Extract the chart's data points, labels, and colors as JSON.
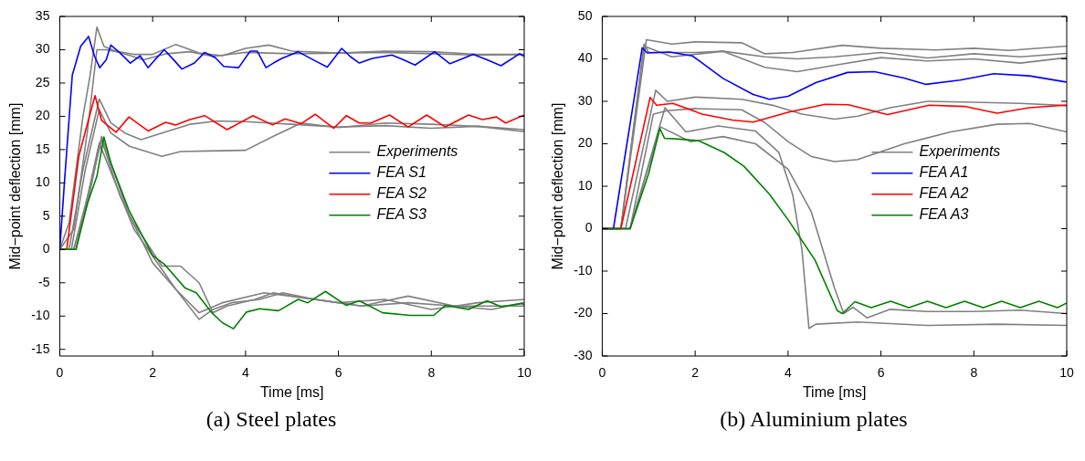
{
  "chart_data": [
    {
      "type": "line",
      "xlabel": "Time [ms]",
      "ylabel": "Mid−point deflection [mm]",
      "annotations": [
        "(a) Steel plates"
      ],
      "xlim": [
        0,
        10
      ],
      "xticks": [
        0,
        2,
        4,
        6,
        8,
        10
      ],
      "ylim": [
        -16,
        35
      ],
      "yticks": [
        -15,
        -10,
        -5,
        0,
        5,
        10,
        15,
        20,
        25,
        30,
        35
      ],
      "legend": "right",
      "series": [
        {
          "name": "Experiments",
          "color": "#808080",
          "x": [
            0,
            0.2,
            0.5,
            0.65,
            0.8,
            0.95,
            1.2,
            1.6,
            2.0,
            2.5,
            3.0,
            3.5,
            4.0,
            4.5,
            5.0,
            6.0,
            7.0,
            8.0,
            9.0,
            10
          ],
          "values": [
            0,
            4,
            20,
            26,
            33.4,
            30.5,
            29.8,
            29.3,
            29.3,
            30.8,
            29.5,
            29.1,
            30.2,
            30.7,
            29.8,
            29.5,
            29.8,
            29.7,
            29.3,
            29.3
          ]
        },
        {
          "color": "#808080",
          "x": [
            0,
            0.3,
            0.6,
            0.8,
            1.0,
            1.3,
            1.8,
            2.3,
            2.8,
            3.3,
            4,
            5,
            6,
            7,
            8,
            9,
            10
          ],
          "values": [
            0,
            3,
            18,
            30,
            30,
            29.6,
            28.5,
            29.4,
            29.7,
            29,
            29.6,
            29.4,
            29.5,
            29.6,
            29.4,
            29.2,
            29.3
          ]
        },
        {
          "color": "#808080",
          "x": [
            0,
            0.2,
            0.5,
            0.85,
            1.1,
            1.4,
            1.75,
            2.2,
            2.8,
            3.4,
            4.0,
            5.0,
            6.0,
            7.0,
            8.0,
            9.0,
            10
          ],
          "values": [
            0,
            0,
            12,
            22.6,
            19,
            17.5,
            16.5,
            17.5,
            18.8,
            19.3,
            19.2,
            18.8,
            18.4,
            18.6,
            18.2,
            18.5,
            18
          ]
        },
        {
          "color": "#808080",
          "x": [
            0,
            0.25,
            0.55,
            0.85,
            1.1,
            1.5,
            2.2,
            2.6,
            3.2,
            4.0,
            4.6,
            5.2,
            6,
            7,
            8,
            9,
            10
          ],
          "values": [
            0,
            0,
            12,
            21,
            17.5,
            15.5,
            14,
            14.7,
            14.8,
            14.9,
            17,
            19,
            18.3,
            19,
            18.8,
            18.5,
            17.7
          ]
        },
        {
          "color": "#808080",
          "x": [
            0,
            0.3,
            0.6,
            0.9,
            1.3,
            2.0,
            2.5,
            3.0,
            3.3,
            3.7,
            4.3,
            4.8,
            5.5,
            6.5,
            7.5,
            8.5,
            9.3,
            10
          ],
          "values": [
            0,
            0,
            8,
            16.5,
            8,
            -2,
            -6,
            -10.5,
            -9,
            -8,
            -7.5,
            -6.5,
            -7.5,
            -8.5,
            -8,
            -8.5,
            -9,
            -8
          ]
        },
        {
          "color": "#808080",
          "x": [
            0,
            0.3,
            0.6,
            0.9,
            1.5,
            2.2,
            2.6,
            3.0,
            3.3,
            3.6,
            4.2,
            4.6,
            5,
            6,
            7,
            8,
            9,
            10
          ],
          "values": [
            0,
            0,
            7,
            17,
            5,
            -2.5,
            -2.5,
            -5,
            -9.5,
            -8.5,
            -7.5,
            -6.5,
            -7,
            -8,
            -7.5,
            -9,
            -8,
            -7.5
          ]
        },
        {
          "color": "#808080",
          "x": [
            0,
            0.35,
            0.85,
            1.6,
            2.5,
            3.0,
            3.5,
            4.4,
            5.5,
            6.5,
            7.5,
            8.5,
            10
          ],
          "values": [
            0,
            0,
            16,
            3,
            -6,
            -9.5,
            -8,
            -6.5,
            -7.5,
            -8.5,
            -7,
            -8.5,
            -8.5
          ]
        },
        {
          "name": "FEA S1",
          "color": "#0000ff",
          "x": [
            0,
            0.1,
            0.27,
            0.45,
            0.62,
            0.75,
            0.86,
            1.0,
            1.1,
            1.3,
            1.52,
            1.73,
            1.9,
            2.05,
            2.25,
            2.45,
            2.63,
            2.9,
            3.12,
            3.35,
            3.53,
            3.85,
            4.1,
            4.25,
            4.44,
            4.6,
            4.78,
            5.13,
            5.48,
            5.76,
            6.07,
            6.25,
            6.45,
            6.73,
            7.15,
            7.4,
            7.65,
            8.07,
            8.4,
            8.9,
            9.2,
            9.5,
            9.9,
            10
          ],
          "values": [
            0,
            10,
            26.2,
            30.5,
            32,
            29,
            27.3,
            28.5,
            30.7,
            29.5,
            28,
            29.1,
            27.3,
            28.5,
            30,
            28.5,
            27.1,
            28,
            29.6,
            28.8,
            27.5,
            27.3,
            29.8,
            29.8,
            27.3,
            28,
            28.7,
            29.7,
            28.4,
            27.4,
            30.2,
            29,
            28,
            28.7,
            29.2,
            28.5,
            27.7,
            29.7,
            27.9,
            29.3,
            28.5,
            27.6,
            29.4,
            29
          ]
        },
        {
          "name": "FEA S2",
          "color": "#ff0000",
          "x": [
            0,
            0.15,
            0.41,
            0.6,
            0.76,
            0.9,
            1.21,
            1.49,
            1.9,
            2.28,
            2.49,
            2.8,
            3.12,
            3.6,
            4.16,
            4.58,
            4.85,
            5.2,
            5.5,
            5.9,
            6.17,
            6.45,
            6.7,
            7.1,
            7.5,
            7.9,
            8.3,
            8.8,
            9.1,
            9.4,
            9.6,
            10
          ],
          "values": [
            0,
            0,
            14,
            19,
            23.1,
            19.4,
            17.6,
            19.9,
            17.8,
            19.1,
            18.7,
            19.5,
            20.1,
            18,
            20.1,
            18.7,
            19.6,
            18.9,
            20.3,
            18.2,
            20.1,
            19,
            19,
            20.2,
            18.4,
            20.2,
            18.4,
            20.2,
            19.5,
            19.9,
            19,
            20.2
          ]
        },
        {
          "name": "FEA S3",
          "color": "#008000",
          "x": [
            0,
            0.35,
            0.6,
            0.8,
            0.95,
            1.1,
            1.49,
            2.0,
            2.25,
            2.7,
            2.94,
            3.26,
            3.5,
            3.74,
            4.02,
            4.3,
            4.71,
            5.13,
            5.34,
            5.72,
            6.17,
            6.45,
            6.95,
            7.55,
            8.05,
            8.3,
            8.8,
            9.2,
            9.5,
            9.95,
            10
          ],
          "values": [
            0,
            0,
            7,
            11,
            16.9,
            13,
            5.9,
            -0.9,
            -2.2,
            -5.8,
            -6.5,
            -9.4,
            -11,
            -11.9,
            -9.4,
            -8.9,
            -9.2,
            -7.5,
            -8,
            -6.3,
            -8.4,
            -7.7,
            -9.5,
            -9.9,
            -9.9,
            -8.4,
            -9,
            -7.7,
            -8.6,
            -8.1,
            -8.3
          ]
        }
      ]
    },
    {
      "type": "line",
      "xlabel": "Time [ms]",
      "ylabel": "Mid−point deflection [mm]",
      "annotations": [
        "(b) Aluminium plates"
      ],
      "xlim": [
        0,
        10
      ],
      "xticks": [
        0,
        2,
        4,
        6,
        8,
        10
      ],
      "ylim": [
        -30,
        50
      ],
      "yticks": [
        -30,
        -20,
        -10,
        0,
        10,
        20,
        30,
        40,
        50
      ],
      "legend": "right",
      "series": [
        {
          "name": "Experiments",
          "color": "#808080",
          "x": [
            0,
            0.4,
            0.95,
            1.5,
            2.0,
            3.0,
            3.5,
            4.1,
            5.17,
            6,
            7.18,
            8,
            8.76,
            10
          ],
          "values": [
            0,
            0,
            44.5,
            43.5,
            44,
            43.8,
            41.2,
            41.5,
            43.2,
            42.5,
            42.1,
            42.5,
            42,
            43
          ]
        },
        {
          "color": "#808080",
          "x": [
            0,
            0.4,
            0.9,
            1.0,
            2.0,
            2.6,
            3.5,
            4.2,
            5,
            6,
            7,
            8,
            9,
            10
          ],
          "values": [
            0,
            0,
            43.5,
            41.5,
            41.5,
            41.8,
            40.5,
            40,
            40.5,
            41.5,
            40.2,
            41.2,
            40.5,
            41.3
          ]
        },
        {
          "color": "#808080",
          "x": [
            0,
            0.4,
            0.9,
            1.5,
            2.6,
            3.5,
            4.2,
            5,
            6,
            7,
            8,
            9,
            10
          ],
          "values": [
            0,
            0,
            43,
            40.5,
            41.8,
            38,
            37,
            38.5,
            40.3,
            39.5,
            40,
            39,
            40.3
          ]
        },
        {
          "color": "#808080",
          "x": [
            0,
            0.5,
            1.15,
            1.4,
            2.0,
            3.0,
            3.7,
            4.3,
            5.0,
            5.5,
            6.2,
            7,
            8,
            9,
            10
          ],
          "values": [
            0,
            0,
            32.6,
            30,
            31,
            30.5,
            29,
            27,
            25.8,
            26.5,
            28.5,
            30,
            29.8,
            29.5,
            29
          ]
        },
        {
          "color": "#808080",
          "x": [
            0,
            0.6,
            1.1,
            1.4,
            2.0,
            3.0,
            3.5,
            4.0,
            4.5,
            5.0,
            5.5,
            6.5,
            7.5,
            8.5,
            9.2,
            10
          ],
          "values": [
            0,
            0,
            27,
            27.8,
            28.3,
            28,
            25,
            20.5,
            17,
            15.8,
            16.3,
            20,
            22.8,
            24.6,
            24.8,
            22.8
          ]
        },
        {
          "color": "#808080",
          "x": [
            0,
            0.6,
            1.35,
            1.8,
            2.5,
            3.3,
            3.8,
            4.1,
            4.3,
            4.45,
            4.6,
            5.5,
            7,
            8.5,
            10
          ],
          "values": [
            0,
            0,
            28.5,
            22.8,
            24.2,
            23,
            18,
            8,
            -5,
            -23.5,
            -22.5,
            -22,
            -22.8,
            -22.5,
            -22.8
          ]
        },
        {
          "color": "#808080",
          "x": [
            0,
            0.6,
            1.25,
            1.9,
            2.6,
            3.3,
            4.0,
            4.5,
            5.0,
            5.2,
            5.4,
            5.7,
            6.2,
            7,
            8,
            9,
            10
          ],
          "values": [
            0,
            0,
            24,
            20.5,
            21.7,
            20,
            14,
            4,
            -14,
            -20,
            -18.5,
            -21,
            -19,
            -19.5,
            -19.5,
            -19.2,
            -20
          ]
        },
        {
          "name": "FEA A1",
          "color": "#0000ff",
          "x": [
            0,
            0.24,
            0.86,
            0.97,
            1.45,
            1.94,
            2.6,
            3.25,
            3.6,
            4.0,
            4.6,
            5.28,
            5.86,
            6.5,
            6.97,
            7.7,
            8.43,
            9.2,
            9.96,
            10
          ],
          "values": [
            0,
            0,
            42.6,
            41.4,
            41.6,
            40.7,
            35.4,
            31.6,
            30.5,
            31.2,
            34.4,
            36.8,
            37,
            35.5,
            34,
            35,
            36.5,
            36,
            34.6,
            34.5
          ]
        },
        {
          "name": "FEA A2",
          "color": "#ff0000",
          "x": [
            0,
            0.4,
            1.03,
            1.17,
            1.52,
            2.15,
            2.8,
            3.25,
            4.0,
            4.8,
            5.3,
            6.14,
            7.04,
            7.8,
            8.5,
            9.19,
            9.96,
            10
          ],
          "values": [
            0,
            0,
            30.9,
            29.1,
            29.5,
            27,
            25.6,
            25.1,
            27.4,
            29.3,
            29.2,
            26.9,
            29.1,
            28.8,
            27.2,
            28.5,
            29.1,
            29
          ]
        },
        {
          "name": "FEA A3",
          "color": "#008000",
          "x": [
            0,
            0.6,
            1.0,
            1.24,
            1.34,
            1.66,
            2.08,
            2.63,
            3.05,
            3.6,
            4.02,
            4.58,
            5.06,
            5.17,
            5.44,
            5.79,
            6.21,
            6.6,
            7.0,
            7.4,
            7.8,
            8.2,
            8.6,
            9.0,
            9.4,
            9.8,
            10
          ],
          "values": [
            0,
            0,
            13,
            23.6,
            21.3,
            21.1,
            20.7,
            17.9,
            14.7,
            8.1,
            1.8,
            -7.4,
            -19.3,
            -20,
            -17.2,
            -18.6,
            -17.1,
            -18.6,
            -17.1,
            -18.6,
            -17.1,
            -18.6,
            -17.1,
            -18.6,
            -17.1,
            -18.6,
            -17.5
          ]
        }
      ]
    }
  ]
}
